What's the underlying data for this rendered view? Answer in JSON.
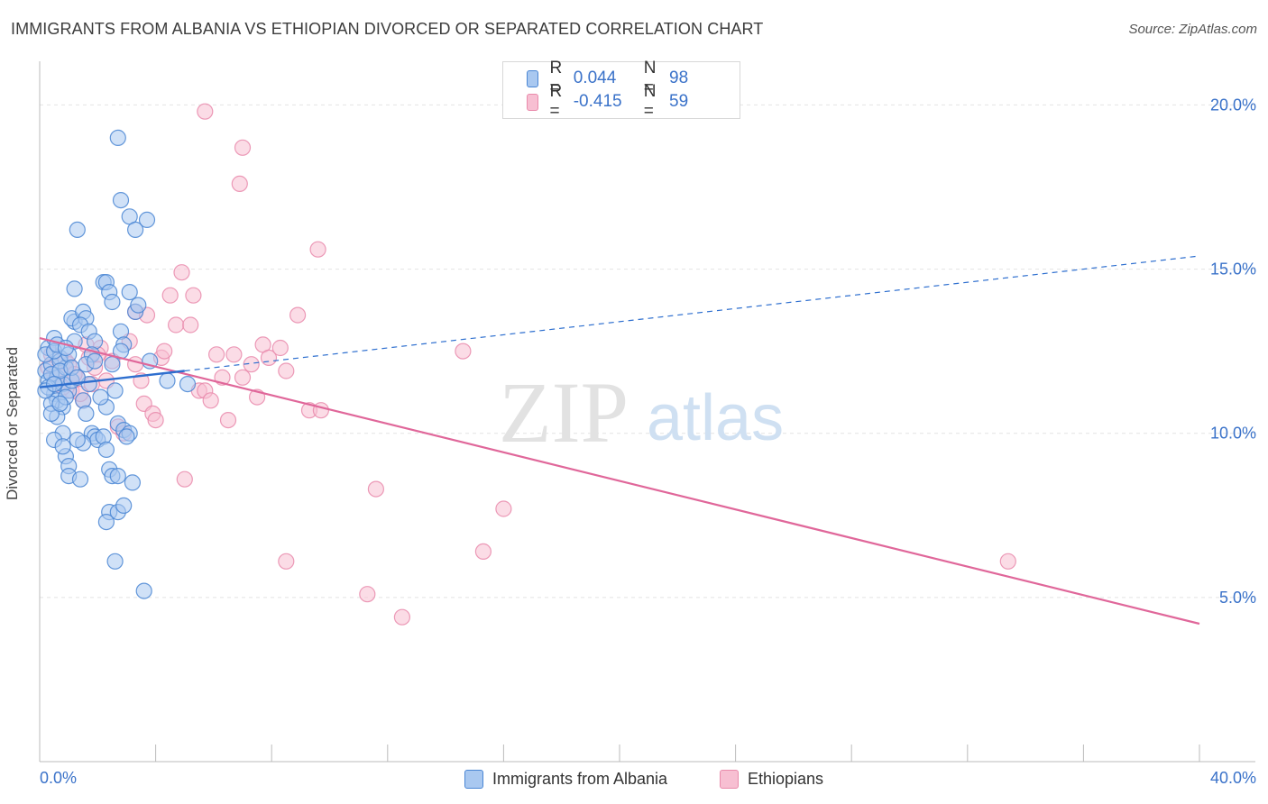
{
  "header": {
    "title": "IMMIGRANTS FROM ALBANIA VS ETHIOPIAN DIVORCED OR SEPARATED CORRELATION CHART",
    "source": "Source: ZipAtlas.com"
  },
  "watermark": {
    "zip": "ZIP",
    "atlas": "atlas"
  },
  "colors": {
    "albania_fill": "#a9c8f0",
    "albania_stroke": "#4a86d4",
    "albania_line": "#2e6fcf",
    "ethiopia_fill": "#f7bfd2",
    "ethiopia_stroke": "#e98aab",
    "ethiopia_line": "#e0679a",
    "axis_text": "#3a72c9",
    "grid": "#e4e4e4"
  },
  "legend": {
    "rows": [
      {
        "r_label": "R =",
        "r_value": "0.044",
        "n_label": "N =",
        "n_value": "98"
      },
      {
        "r_label": "R =",
        "r_value": "-0.415",
        "n_label": "N =",
        "n_value": "59"
      }
    ]
  },
  "bottom_legend": {
    "albania": "Immigrants from Albania",
    "ethiopia": "Ethiopians"
  },
  "chart_data": {
    "type": "scatter",
    "title": "IMMIGRANTS FROM ALBANIA VS ETHIOPIAN DIVORCED OR SEPARATED CORRELATION CHART",
    "xlabel": "",
    "ylabel": "Divorced or Separated",
    "xlim": [
      0,
      40
    ],
    "ylim": [
      0,
      21
    ],
    "x_tick_labels": [
      "0.0%",
      "40.0%"
    ],
    "y_ticks": [
      5,
      10,
      15,
      20
    ],
    "y_tick_labels": [
      "5.0%",
      "10.0%",
      "15.0%",
      "20.0%"
    ],
    "grid": true,
    "legend_position": "top-center",
    "series": [
      {
        "name": "Immigrants from Albania",
        "R": 0.044,
        "N": 98,
        "trend_solid": [
          [
            0.0,
            11.4
          ],
          [
            5.0,
            11.9
          ]
        ],
        "trend_dashed": [
          [
            5.0,
            11.9
          ],
          [
            40.0,
            15.4
          ]
        ],
        "points": [
          [
            0.2,
            11.9
          ],
          [
            0.3,
            11.6
          ],
          [
            0.4,
            12.1
          ],
          [
            0.5,
            11.2
          ],
          [
            0.6,
            11.7
          ],
          [
            0.7,
            12.3
          ],
          [
            0.8,
            11.5
          ],
          [
            0.9,
            12.0
          ],
          [
            0.3,
            12.6
          ],
          [
            0.5,
            12.9
          ],
          [
            0.6,
            11.0
          ],
          [
            0.8,
            10.8
          ],
          [
            1.0,
            11.3
          ],
          [
            0.4,
            11.8
          ],
          [
            0.7,
            12.2
          ],
          [
            0.9,
            11.1
          ],
          [
            0.2,
            12.4
          ],
          [
            0.6,
            10.5
          ],
          [
            1.0,
            12.4
          ],
          [
            1.1,
            11.6
          ],
          [
            1.2,
            12.8
          ],
          [
            0.4,
            10.9
          ],
          [
            0.8,
            10.0
          ],
          [
            0.5,
            9.8
          ],
          [
            0.9,
            9.3
          ],
          [
            1.0,
            9.0
          ],
          [
            1.0,
            8.7
          ],
          [
            1.4,
            8.6
          ],
          [
            1.2,
            13.4
          ],
          [
            1.1,
            13.5
          ],
          [
            1.5,
            13.7
          ],
          [
            1.6,
            13.5
          ],
          [
            1.4,
            13.3
          ],
          [
            1.7,
            13.1
          ],
          [
            1.9,
            12.8
          ],
          [
            1.8,
            12.4
          ],
          [
            1.6,
            12.1
          ],
          [
            1.7,
            11.5
          ],
          [
            1.5,
            11.0
          ],
          [
            1.6,
            10.6
          ],
          [
            1.8,
            10.0
          ],
          [
            1.9,
            9.9
          ],
          [
            2.0,
            9.8
          ],
          [
            1.5,
            9.7
          ],
          [
            1.3,
            9.8
          ],
          [
            2.2,
            9.9
          ],
          [
            2.3,
            9.5
          ],
          [
            2.4,
            8.9
          ],
          [
            2.5,
            8.7
          ],
          [
            2.7,
            8.7
          ],
          [
            2.2,
            14.6
          ],
          [
            2.3,
            14.6
          ],
          [
            2.4,
            14.3
          ],
          [
            2.5,
            14.0
          ],
          [
            2.8,
            13.1
          ],
          [
            2.9,
            12.7
          ],
          [
            2.8,
            12.5
          ],
          [
            2.5,
            12.1
          ],
          [
            2.6,
            11.3
          ],
          [
            2.3,
            10.8
          ],
          [
            2.7,
            10.3
          ],
          [
            2.9,
            10.1
          ],
          [
            3.1,
            10.0
          ],
          [
            3.0,
            9.9
          ],
          [
            2.4,
            7.6
          ],
          [
            2.7,
            7.6
          ],
          [
            2.9,
            7.8
          ],
          [
            2.3,
            7.3
          ],
          [
            2.6,
            6.1
          ],
          [
            3.2,
            8.5
          ],
          [
            3.6,
            5.2
          ],
          [
            1.2,
            14.4
          ],
          [
            1.3,
            16.2
          ],
          [
            2.7,
            19.0
          ],
          [
            2.8,
            17.1
          ],
          [
            3.1,
            16.6
          ],
          [
            3.3,
            16.2
          ],
          [
            3.7,
            16.5
          ],
          [
            3.1,
            14.3
          ],
          [
            3.3,
            13.7
          ],
          [
            3.4,
            13.9
          ],
          [
            4.4,
            11.6
          ],
          [
            5.1,
            11.5
          ],
          [
            3.8,
            12.2
          ],
          [
            0.3,
            11.4
          ],
          [
            0.5,
            12.5
          ],
          [
            0.7,
            11.9
          ],
          [
            1.1,
            12.0
          ],
          [
            0.6,
            12.7
          ],
          [
            0.4,
            10.6
          ],
          [
            0.8,
            9.6
          ],
          [
            1.3,
            11.7
          ],
          [
            1.9,
            12.2
          ],
          [
            2.1,
            11.1
          ],
          [
            0.2,
            11.3
          ],
          [
            0.9,
            12.6
          ],
          [
            0.5,
            11.5
          ],
          [
            0.7,
            10.9
          ]
        ]
      },
      {
        "name": "Ethiopians",
        "R": -0.415,
        "N": 59,
        "trend_solid": [
          [
            0.0,
            12.9
          ],
          [
            40.0,
            4.2
          ]
        ],
        "points": [
          [
            0.3,
            12.0
          ],
          [
            0.5,
            11.8
          ],
          [
            0.7,
            11.5
          ],
          [
            0.9,
            12.2
          ],
          [
            1.1,
            11.3
          ],
          [
            1.3,
            11.7
          ],
          [
            1.5,
            11.0
          ],
          [
            1.7,
            12.3
          ],
          [
            1.9,
            12.0
          ],
          [
            2.1,
            12.6
          ],
          [
            2.3,
            11.6
          ],
          [
            0.4,
            12.4
          ],
          [
            0.6,
            11.9
          ],
          [
            0.8,
            11.4
          ],
          [
            1.0,
            12.1
          ],
          [
            1.2,
            11.8
          ],
          [
            1.4,
            11.2
          ],
          [
            1.6,
            12.7
          ],
          [
            1.8,
            11.5
          ],
          [
            2.0,
            12.4
          ],
          [
            2.5,
            12.2
          ],
          [
            2.7,
            10.2
          ],
          [
            2.9,
            10.0
          ],
          [
            3.1,
            12.8
          ],
          [
            3.3,
            12.1
          ],
          [
            3.5,
            11.6
          ],
          [
            3.3,
            13.7
          ],
          [
            3.7,
            13.6
          ],
          [
            3.6,
            10.9
          ],
          [
            3.9,
            10.6
          ],
          [
            4.0,
            10.4
          ],
          [
            4.2,
            12.3
          ],
          [
            4.3,
            12.5
          ],
          [
            4.5,
            14.2
          ],
          [
            4.7,
            13.3
          ],
          [
            4.9,
            14.9
          ],
          [
            5.2,
            13.3
          ],
          [
            5.3,
            14.2
          ],
          [
            5.5,
            11.3
          ],
          [
            5.7,
            11.3
          ],
          [
            5.9,
            11.0
          ],
          [
            6.1,
            12.4
          ],
          [
            6.3,
            11.7
          ],
          [
            6.5,
            10.4
          ],
          [
            6.7,
            12.4
          ],
          [
            7.0,
            11.7
          ],
          [
            7.3,
            12.1
          ],
          [
            7.5,
            11.1
          ],
          [
            7.7,
            12.7
          ],
          [
            7.9,
            12.3
          ],
          [
            8.3,
            12.6
          ],
          [
            8.5,
            11.9
          ],
          [
            8.9,
            13.6
          ],
          [
            9.3,
            10.7
          ],
          [
            9.7,
            10.7
          ],
          [
            9.6,
            15.6
          ],
          [
            5.0,
            8.6
          ],
          [
            8.5,
            6.1
          ],
          [
            11.6,
            8.3
          ]
        ],
        "extra_points": [
          [
            5.7,
            19.8
          ],
          [
            7.0,
            18.7
          ],
          [
            6.9,
            17.6
          ],
          [
            14.6,
            12.5
          ],
          [
            16.0,
            7.7
          ],
          [
            15.3,
            6.4
          ],
          [
            11.3,
            5.1
          ],
          [
            12.5,
            4.4
          ],
          [
            33.4,
            6.1
          ]
        ]
      }
    ]
  }
}
